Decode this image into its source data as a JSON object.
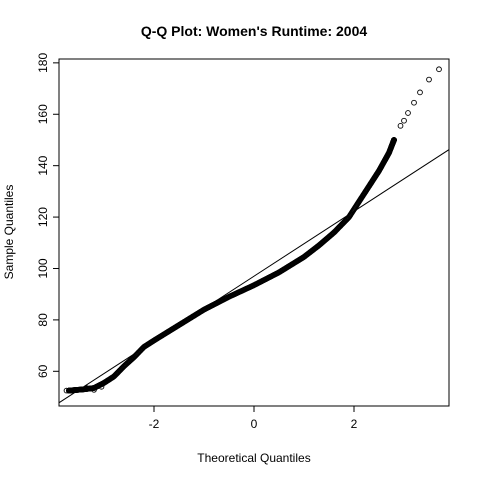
{
  "chart_data": {
    "type": "scatter",
    "title": "Q-Q Plot: Women's Runtime:  2004",
    "xlabel": "Theoretical Quantiles",
    "ylabel": "Sample Quantiles",
    "xlim": [
      -3.9,
      3.9
    ],
    "ylim": [
      46.5,
      181.5
    ],
    "x_ticks": [
      -2,
      0,
      2
    ],
    "y_ticks": [
      60,
      80,
      100,
      120,
      140,
      160,
      180
    ],
    "grid": false,
    "point_style": "open-circle",
    "point_color": "#000000",
    "reference_line": {
      "x": [
        -4.0,
        4.0
      ],
      "y": [
        46.5,
        147.5
      ]
    },
    "curve_knots": [
      [
        -3.7,
        52.5
      ],
      [
        -3.4,
        53.0
      ],
      [
        -3.2,
        53.5
      ],
      [
        -3.0,
        55.5
      ],
      [
        -2.8,
        58.0
      ],
      [
        -2.6,
        62.0
      ],
      [
        -2.4,
        65.5
      ],
      [
        -2.2,
        69.5
      ],
      [
        -2.0,
        72.0
      ],
      [
        -1.5,
        78.0
      ],
      [
        -1.0,
        84.0
      ],
      [
        -0.5,
        89.0
      ],
      [
        0.0,
        93.5
      ],
      [
        0.5,
        98.5
      ],
      [
        1.0,
        104.5
      ],
      [
        1.3,
        109.0
      ],
      [
        1.6,
        114.0
      ],
      [
        1.9,
        120.0
      ],
      [
        2.1,
        126.0
      ],
      [
        2.3,
        132.0
      ],
      [
        2.5,
        138.0
      ],
      [
        2.7,
        145.0
      ],
      [
        2.8,
        150.0
      ]
    ],
    "curve_point_count": 650,
    "tail_points": [
      {
        "x": 2.93,
        "y": 155.5
      },
      {
        "x": 3.0,
        "y": 157.5
      },
      {
        "x": 3.08,
        "y": 160.5
      },
      {
        "x": 3.2,
        "y": 164.5
      },
      {
        "x": 3.32,
        "y": 168.5
      },
      {
        "x": 3.5,
        "y": 173.5
      },
      {
        "x": 3.7,
        "y": 177.5
      }
    ],
    "extra_points": [
      {
        "x": -3.75,
        "y": 52.5
      },
      {
        "x": -3.35,
        "y": 53.5
      },
      {
        "x": -3.2,
        "y": 52.8
      },
      {
        "x": -3.05,
        "y": 54.0
      }
    ]
  }
}
